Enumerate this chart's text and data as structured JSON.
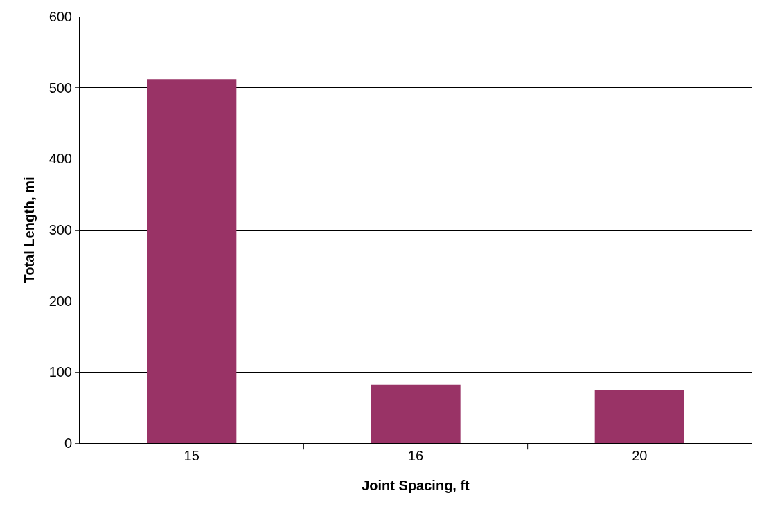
{
  "chart_data": {
    "type": "bar",
    "xlabel": "Joint Spacing, ft",
    "ylabel": "Total Length, mi",
    "categories": [
      "15",
      "16",
      "20"
    ],
    "values": [
      512,
      82,
      75
    ],
    "color": "#993366",
    "ylim": [
      0,
      600
    ],
    "yticks": [
      0,
      100,
      200,
      300,
      400,
      500,
      600
    ],
    "grid": "y"
  }
}
